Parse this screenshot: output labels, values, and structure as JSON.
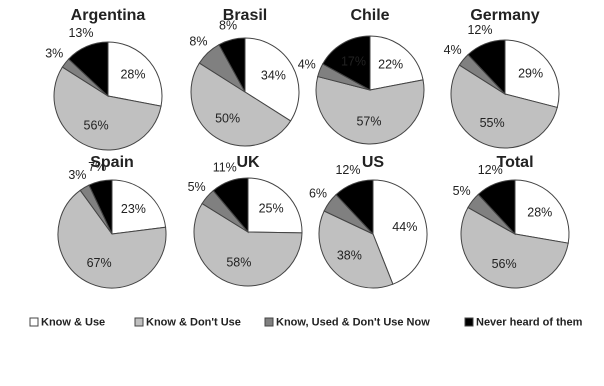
{
  "chart_data": [
    {
      "type": "pie",
      "title": "Argentina",
      "values": [
        28,
        56,
        3,
        13
      ],
      "value_labels": [
        "28%",
        "56%",
        "3%",
        "13%"
      ]
    },
    {
      "type": "pie",
      "title": "Brasil",
      "values": [
        34,
        50,
        8,
        8
      ],
      "value_labels": [
        "34%",
        "50%",
        "8%",
        "8%"
      ]
    },
    {
      "type": "pie",
      "title": "Chile",
      "values": [
        22,
        57,
        4,
        17
      ],
      "value_labels": [
        "22%",
        "57%",
        "4%",
        "17%"
      ]
    },
    {
      "type": "pie",
      "title": "Germany",
      "values": [
        29,
        55,
        4,
        12
      ],
      "value_labels": [
        "29%",
        "55%",
        "4%",
        "12%"
      ]
    },
    {
      "type": "pie",
      "title": "Spain",
      "values": [
        23,
        67,
        3,
        7
      ],
      "value_labels": [
        "23%",
        "67%",
        "3%",
        "7%"
      ]
    },
    {
      "type": "pie",
      "title": "UK",
      "values": [
        25,
        58,
        5,
        11
      ],
      "value_labels": [
        "25%",
        "58%",
        "5%",
        "11%"
      ]
    },
    {
      "type": "pie",
      "title": "US",
      "values": [
        44,
        38,
        6,
        12
      ],
      "value_labels": [
        "44%",
        "38%",
        "6%",
        "12%"
      ]
    },
    {
      "type": "pie",
      "title": "Total",
      "values": [
        28,
        56,
        5,
        12
      ],
      "value_labels": [
        "28%",
        "56%",
        "5%",
        "12%"
      ]
    }
  ],
  "legend": {
    "items": [
      {
        "label": "Know & Use",
        "color": "#ffffff"
      },
      {
        "label": "Know & Don't Use",
        "color": "#c0c0c0"
      },
      {
        "label": "Know, Used & Don't Use Now",
        "color": "#808080"
      },
      {
        "label": "Never heard of them",
        "color": "#000000"
      }
    ]
  }
}
